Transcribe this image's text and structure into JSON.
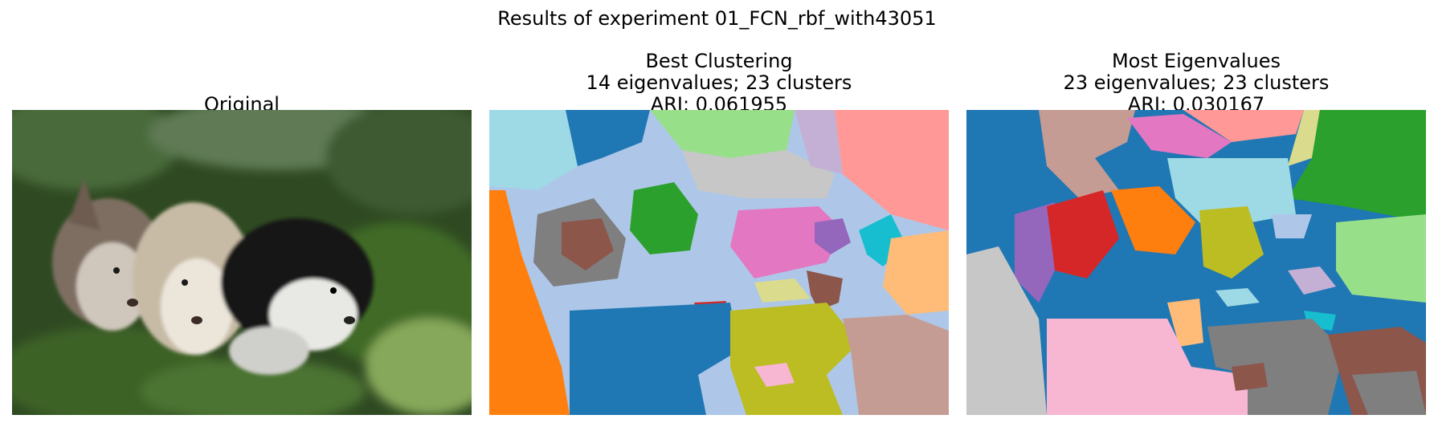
{
  "figure": {
    "suptitle": "Results of experiment 01_FCN_rbf_with43051"
  },
  "panels": [
    {
      "title_lines": [
        "Original"
      ],
      "image": "photo of three husky puppies lying on green grass"
    },
    {
      "title_lines": [
        "Best Clustering",
        "14 eigenvalues; 23 clusters",
        "ARI: 0.061955"
      ],
      "image": "segmentation map with 23 colored cluster regions"
    },
    {
      "title_lines": [
        "Most Eigenvalues",
        "23 eigenvalues; 23 clusters",
        "ARI: 0.030167"
      ],
      "image": "segmentation map with 23 colored cluster regions"
    }
  ]
}
